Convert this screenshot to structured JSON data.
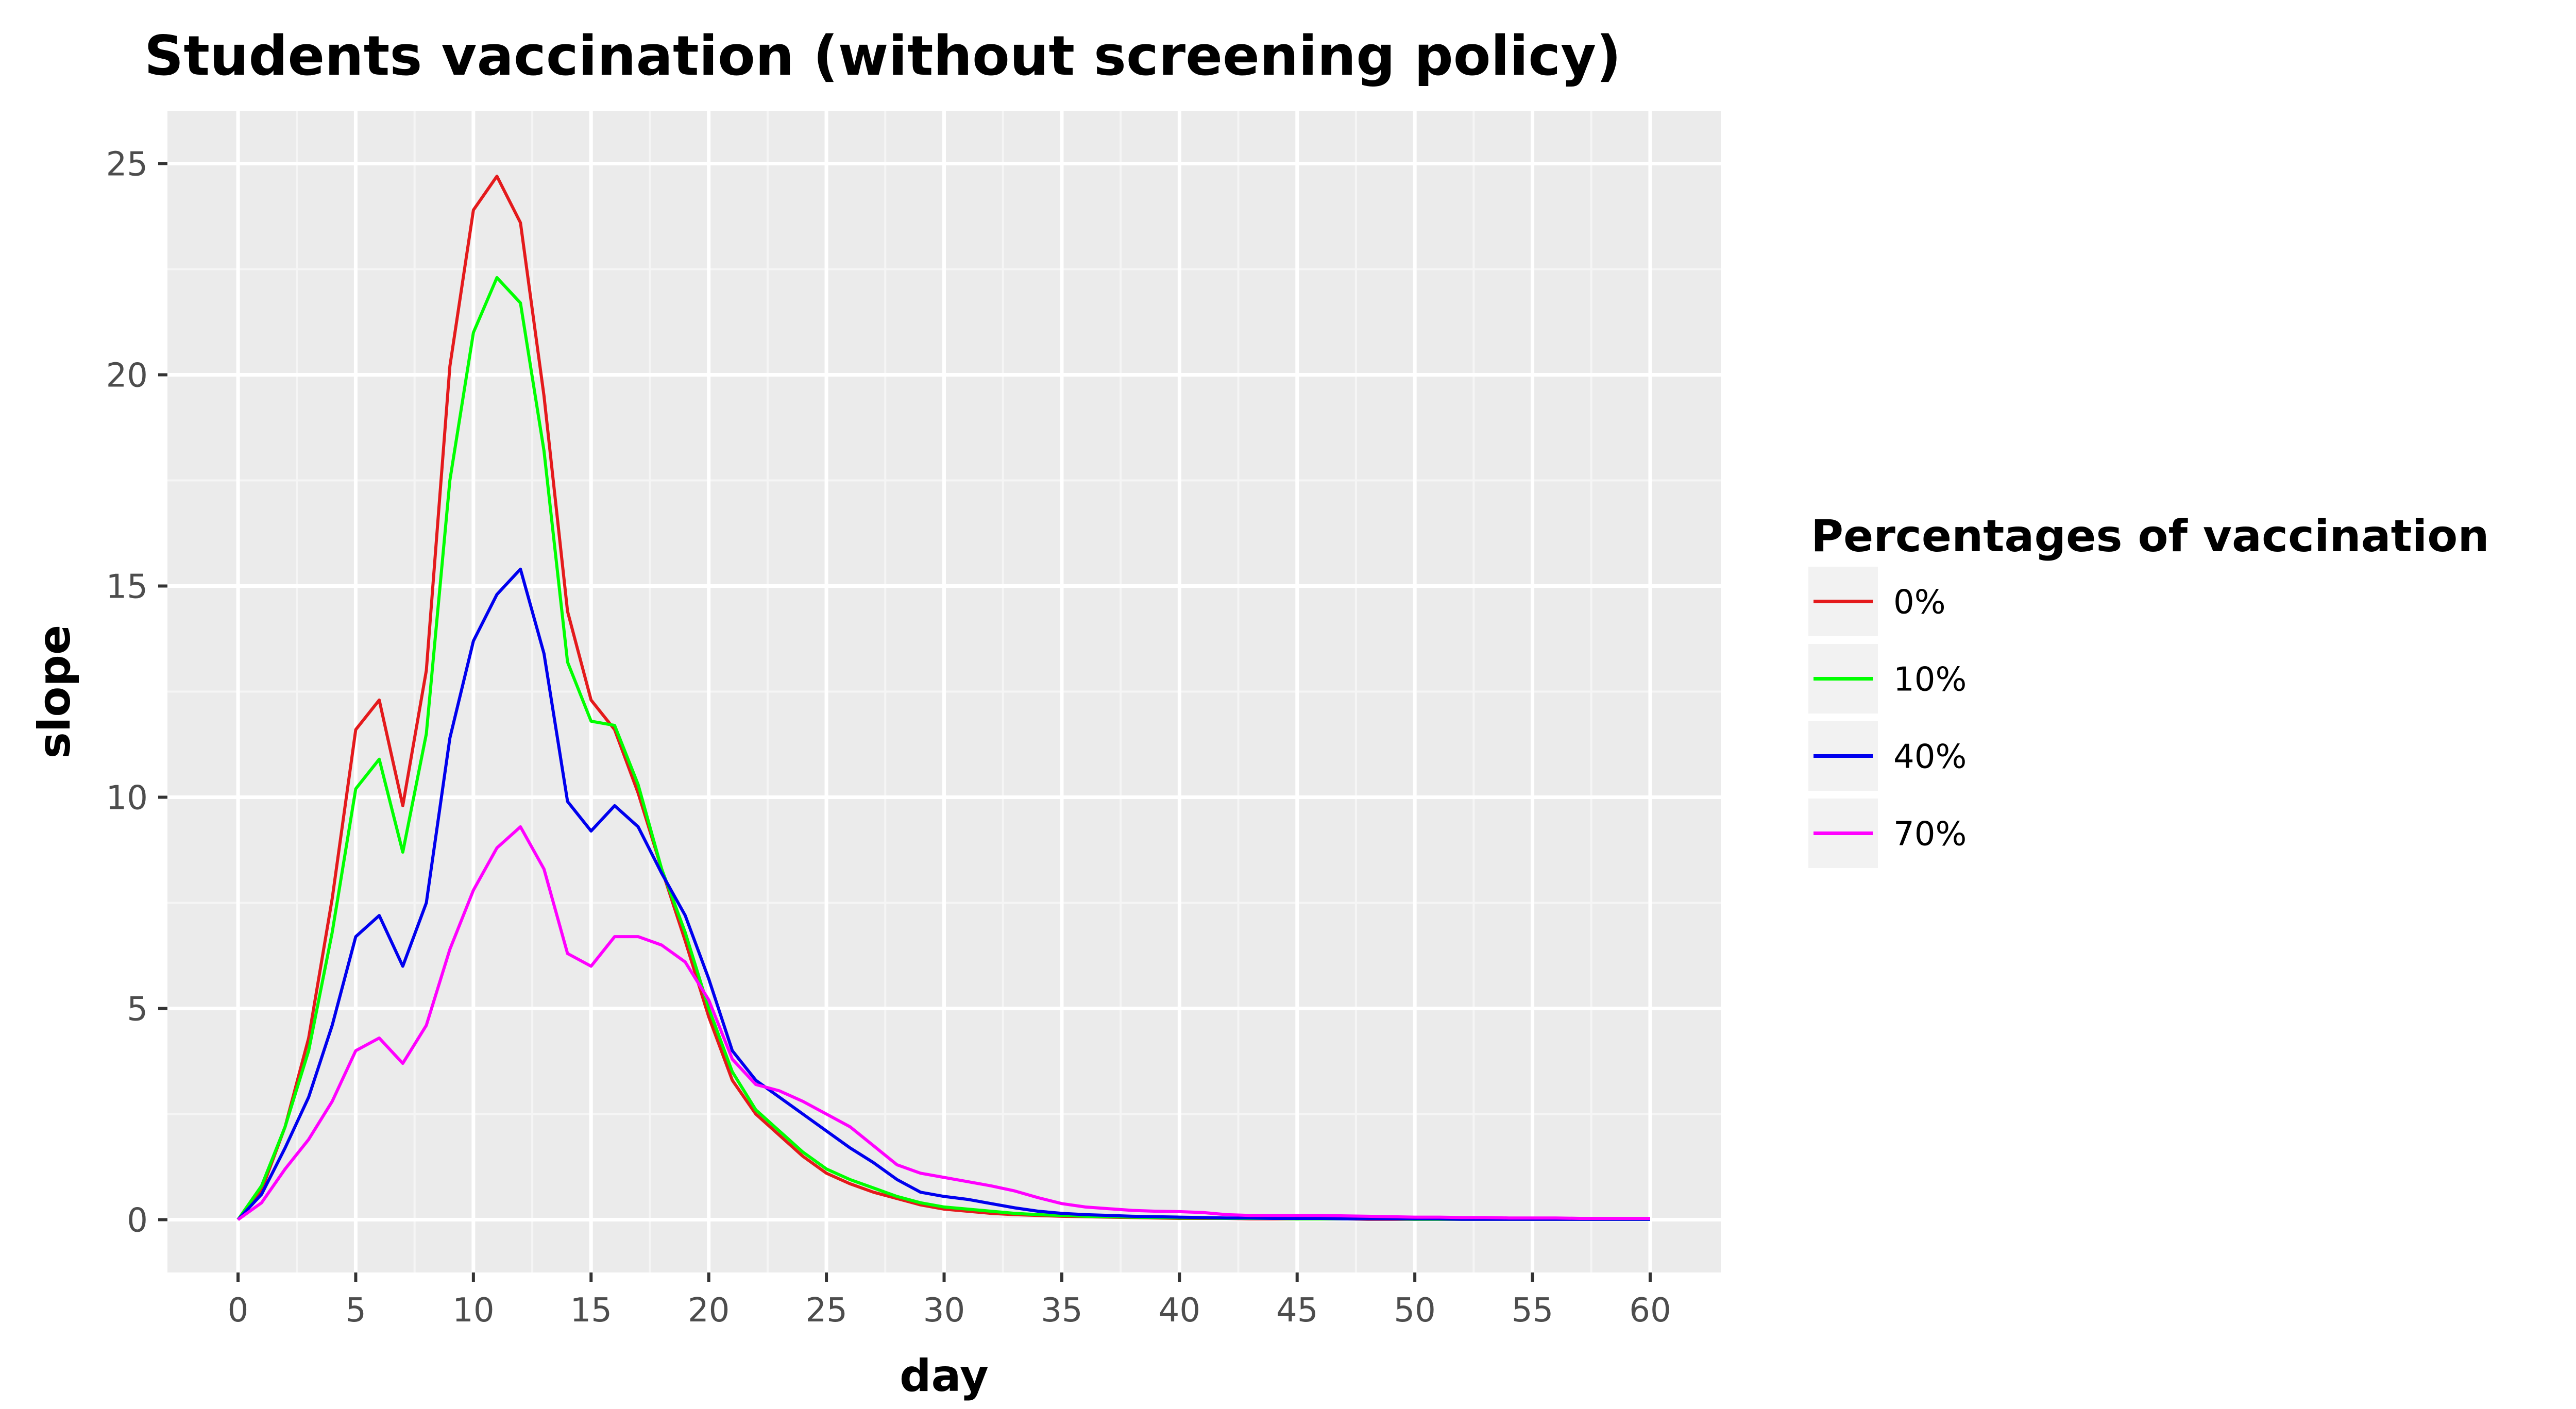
{
  "chart_data": {
    "type": "line",
    "title": "Students vaccination (without screening policy)",
    "xlabel": "day",
    "ylabel": "slope",
    "xlim": [
      -3,
      63
    ],
    "ylim": [
      -1.25,
      26.25
    ],
    "x_ticks": [
      0,
      5,
      10,
      15,
      20,
      25,
      30,
      35,
      40,
      45,
      50,
      55,
      60
    ],
    "y_ticks": [
      0,
      5,
      10,
      15,
      20,
      25
    ],
    "grid": true,
    "legend": {
      "title": "Percentages of vaccination",
      "position": "right"
    },
    "x": [
      0,
      1,
      2,
      3,
      4,
      5,
      6,
      7,
      8,
      9,
      10,
      11,
      12,
      13,
      14,
      15,
      16,
      17,
      18,
      19,
      20,
      21,
      22,
      23,
      24,
      25,
      26,
      27,
      28,
      29,
      30,
      31,
      32,
      33,
      34,
      35,
      36,
      37,
      38,
      39,
      40,
      41,
      42,
      43,
      44,
      45,
      46,
      47,
      48,
      49,
      50,
      51,
      52,
      53,
      54,
      55,
      56,
      57,
      58,
      59,
      60
    ],
    "series": [
      {
        "name": "0%",
        "color": "#e41a1c",
        "values": [
          0,
          0.7,
          2.2,
          4.3,
          7.6,
          11.6,
          12.3,
          9.8,
          13.0,
          20.2,
          23.9,
          24.7,
          23.6,
          19.5,
          14.4,
          12.3,
          11.6,
          10.1,
          8.3,
          6.6,
          4.8,
          3.3,
          2.5,
          2.0,
          1.5,
          1.1,
          0.85,
          0.65,
          0.5,
          0.35,
          0.25,
          0.2,
          0.15,
          0.12,
          0.1,
          0.08,
          0.07,
          0.06,
          0.05,
          0.04,
          0.03,
          0.03,
          0.03,
          0.02,
          0.02,
          0.02,
          0.02,
          0.02,
          0.01,
          0.01,
          0.01,
          0.01,
          0.01,
          0.01,
          0.01,
          0.01,
          0.01,
          0.01,
          0.01,
          0.01,
          0.01
        ]
      },
      {
        "name": "10%",
        "color": "#00ff00",
        "values": [
          0,
          0.8,
          2.2,
          4.0,
          6.8,
          10.2,
          10.9,
          8.7,
          11.5,
          17.5,
          21.0,
          22.3,
          21.7,
          18.2,
          13.2,
          11.8,
          11.7,
          10.3,
          8.3,
          6.8,
          5.0,
          3.5,
          2.6,
          2.1,
          1.6,
          1.2,
          0.95,
          0.75,
          0.55,
          0.4,
          0.3,
          0.25,
          0.2,
          0.15,
          0.12,
          0.1,
          0.08,
          0.07,
          0.06,
          0.05,
          0.04,
          0.04,
          0.03,
          0.03,
          0.03,
          0.02,
          0.02,
          0.02,
          0.02,
          0.02,
          0.01,
          0.01,
          0.01,
          0.01,
          0.01,
          0.01,
          0.01,
          0.01,
          0.01,
          0.01,
          0.01
        ]
      },
      {
        "name": "40%",
        "color": "#0000ee",
        "values": [
          0,
          0.6,
          1.7,
          2.9,
          4.6,
          6.7,
          7.2,
          6.0,
          7.5,
          11.4,
          13.7,
          14.8,
          15.4,
          13.4,
          9.9,
          9.2,
          9.8,
          9.3,
          8.2,
          7.2,
          5.7,
          4.0,
          3.3,
          2.9,
          2.5,
          2.1,
          1.7,
          1.35,
          0.95,
          0.65,
          0.55,
          0.48,
          0.38,
          0.28,
          0.2,
          0.15,
          0.12,
          0.1,
          0.08,
          0.07,
          0.06,
          0.05,
          0.04,
          0.04,
          0.03,
          0.03,
          0.03,
          0.02,
          0.02,
          0.02,
          0.02,
          0.02,
          0.01,
          0.01,
          0.01,
          0.01,
          0.01,
          0.01,
          0.01,
          0.01,
          0.01
        ]
      },
      {
        "name": "70%",
        "color": "#ff00ff",
        "values": [
          0,
          0.4,
          1.2,
          1.9,
          2.8,
          4.0,
          4.3,
          3.7,
          4.6,
          6.4,
          7.8,
          8.8,
          9.3,
          8.3,
          6.3,
          6.0,
          6.7,
          6.7,
          6.5,
          6.1,
          5.2,
          3.8,
          3.2,
          3.05,
          2.8,
          2.5,
          2.2,
          1.75,
          1.3,
          1.1,
          1.0,
          0.9,
          0.8,
          0.68,
          0.52,
          0.38,
          0.3,
          0.26,
          0.22,
          0.2,
          0.19,
          0.17,
          0.12,
          0.1,
          0.1,
          0.1,
          0.1,
          0.09,
          0.08,
          0.07,
          0.06,
          0.06,
          0.05,
          0.05,
          0.04,
          0.04,
          0.04,
          0.03,
          0.03,
          0.03,
          0.03
        ]
      }
    ]
  }
}
